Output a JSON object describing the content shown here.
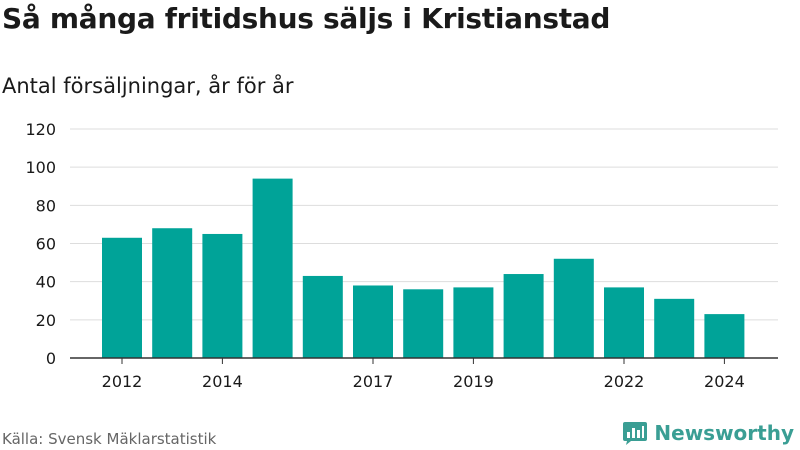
{
  "header": {
    "title": "Så många fritidshus säljs i Kristianstad",
    "subtitle": "Antal försäljningar, år för år"
  },
  "footer": {
    "source": "Källa: Svensk Mäklarstatistik",
    "brand": "Newsworthy",
    "brand_icon": "bar-chart-logo-icon"
  },
  "colors": {
    "bar": "#00a398",
    "grid": "#dddddd",
    "brand": "#3a9e94"
  },
  "chart_data": {
    "type": "bar",
    "title": "Så många fritidshus säljs i Kristianstad",
    "subtitle": "Antal försäljningar, år för år",
    "x": [
      2012,
      2013,
      2014,
      2015,
      2016,
      2017,
      2018,
      2019,
      2020,
      2021,
      2022,
      2023,
      2024
    ],
    "values": [
      63,
      68,
      65,
      94,
      43,
      38,
      36,
      37,
      44,
      52,
      37,
      31,
      23
    ],
    "x_tick_labels": [
      "2012",
      "2014",
      "2017",
      "2019",
      "2022",
      "2024"
    ],
    "y_ticks": [
      0,
      20,
      40,
      60,
      80,
      100,
      120
    ],
    "ylim": [
      0,
      120
    ],
    "xlabel": "",
    "ylabel": "",
    "grid": true,
    "legend": "none"
  }
}
